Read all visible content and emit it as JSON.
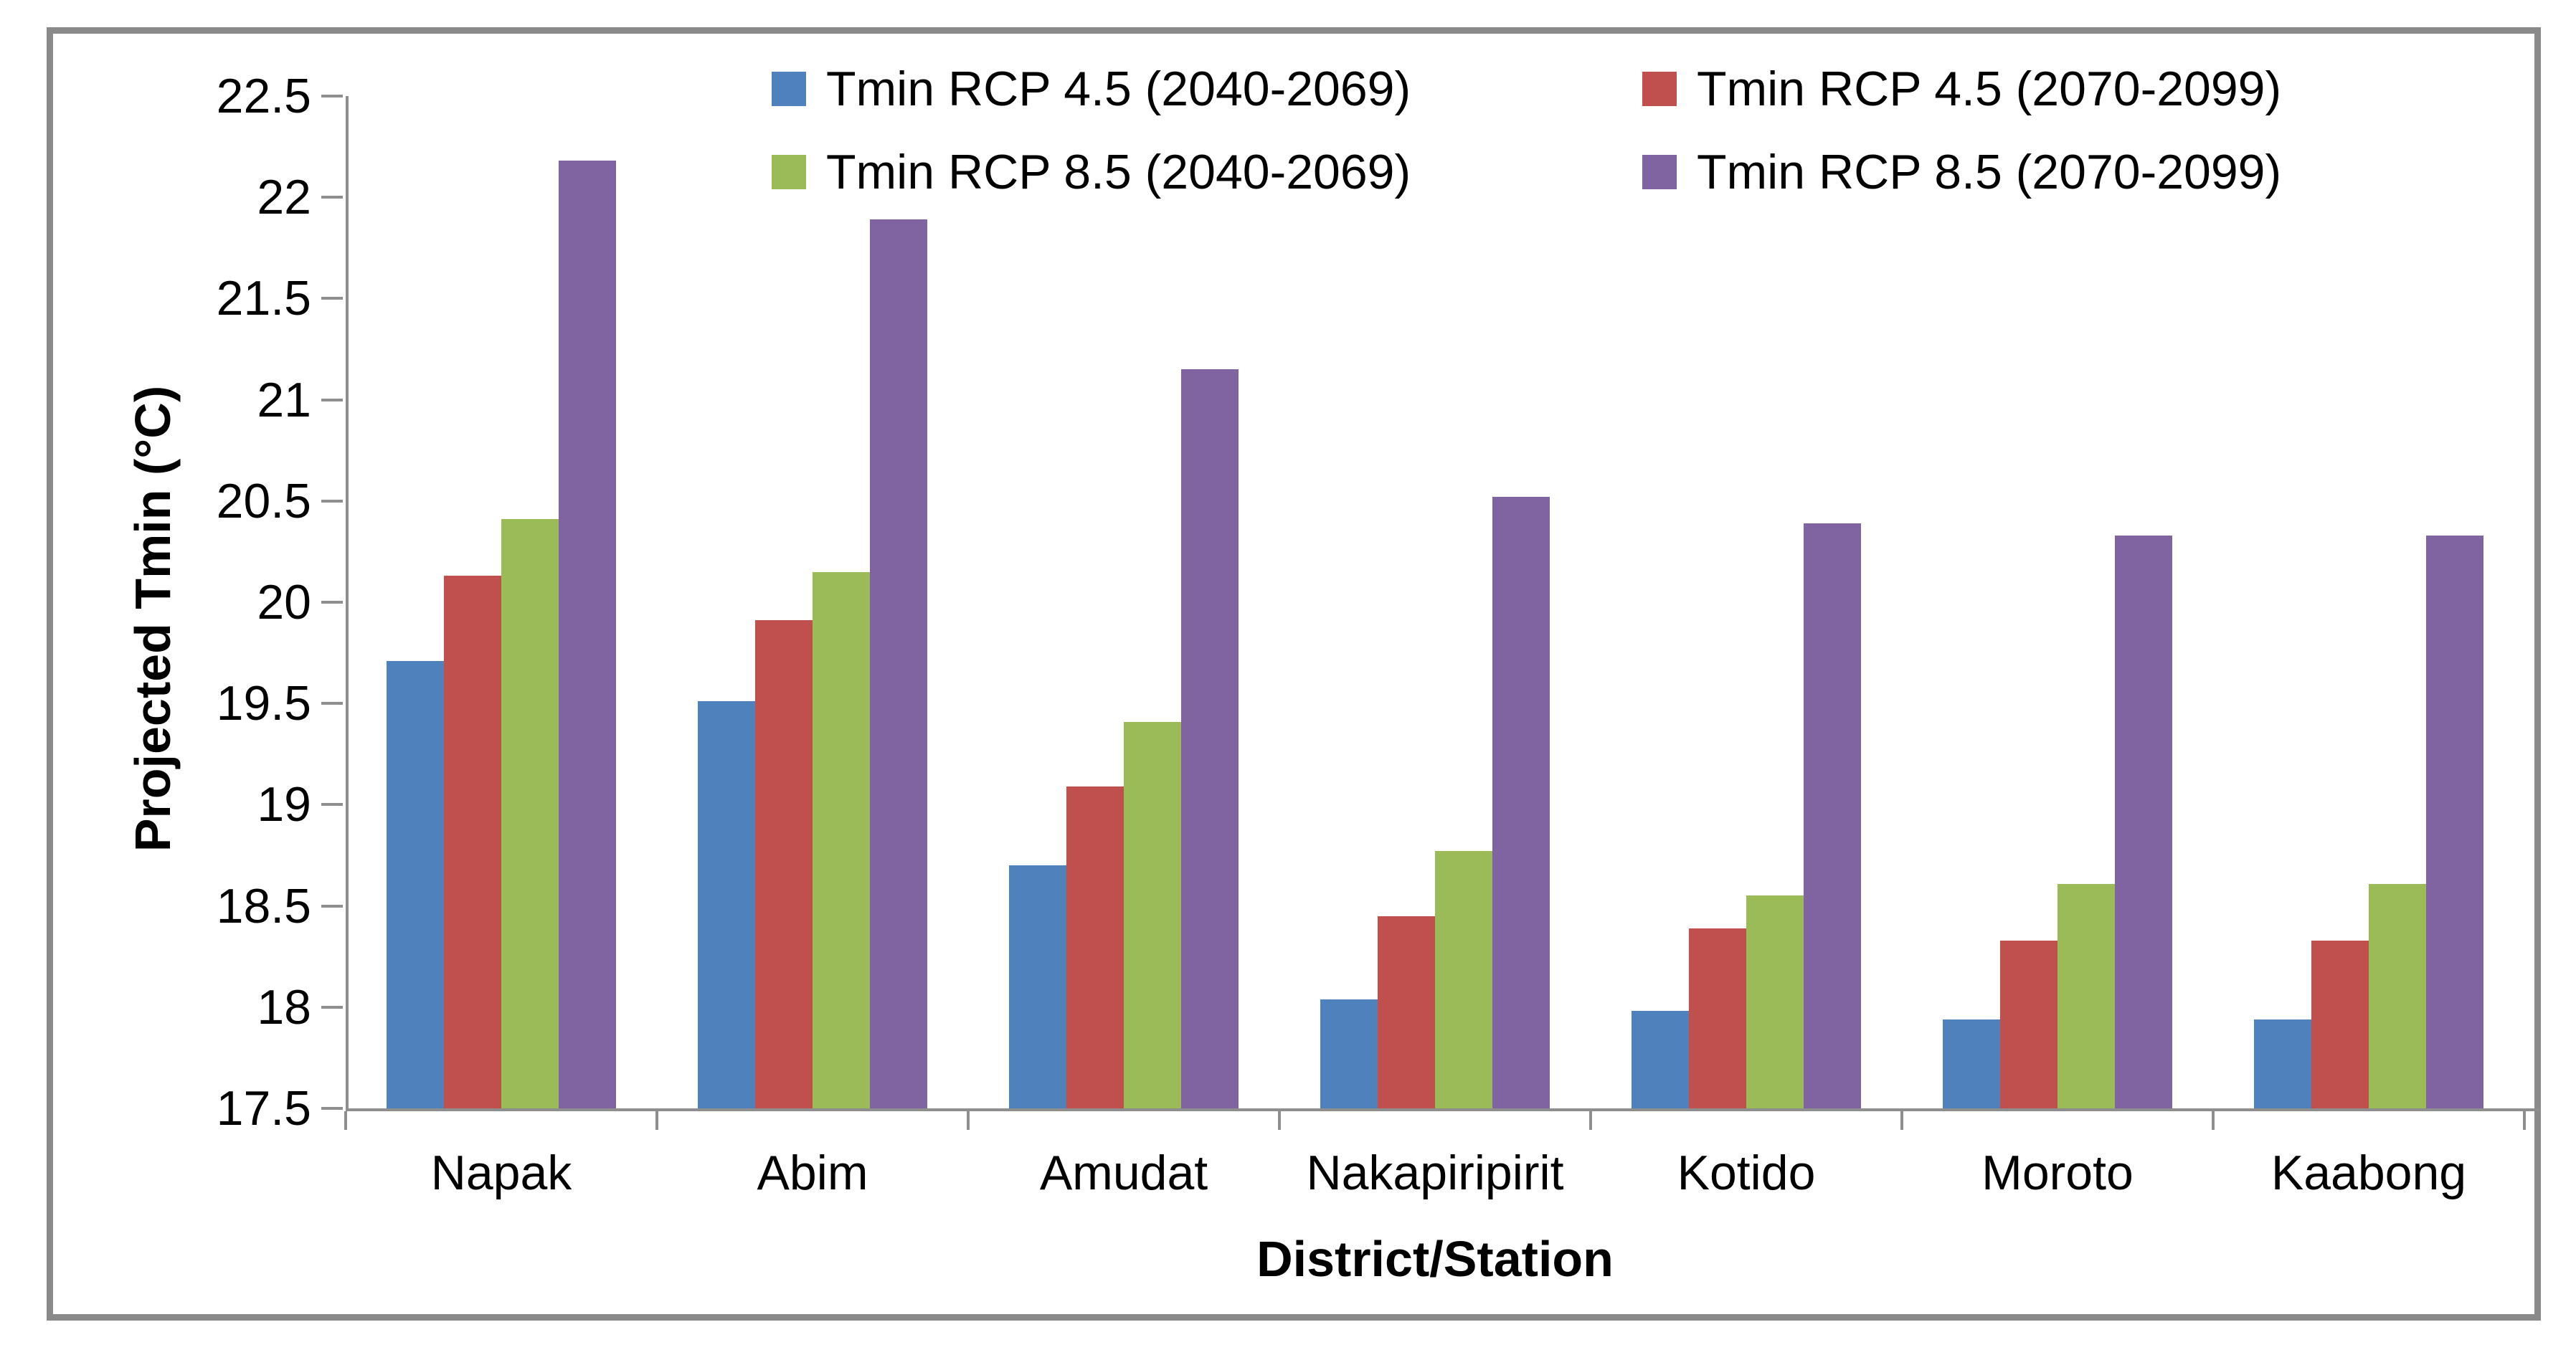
{
  "chart_data": {
    "type": "bar",
    "categories": [
      "Napak",
      "Abim",
      "Amudat",
      "Nakapiripirit",
      "Kotido",
      "Moroto",
      "Kaabong"
    ],
    "series": [
      {
        "name": "Tmin RCP 4.5 (2040-2069)",
        "color": "#4F81BD",
        "values": [
          19.71,
          19.51,
          18.7,
          18.04,
          17.98,
          17.94,
          17.94
        ]
      },
      {
        "name": "Tmin RCP 4.5 (2070-2099)",
        "color": "#C0504D",
        "values": [
          20.13,
          19.91,
          19.09,
          18.45,
          18.39,
          18.33,
          18.33
        ]
      },
      {
        "name": "Tmin RCP 8.5 (2040-2069)",
        "color": "#9BBB59",
        "values": [
          20.41,
          20.15,
          19.41,
          18.77,
          18.55,
          18.61,
          18.61
        ]
      },
      {
        "name": "Tmin RCP 8.5 (2070-2099)",
        "color": "#8064A2",
        "values": [
          22.18,
          21.89,
          21.15,
          20.52,
          20.39,
          20.33,
          20.33
        ]
      }
    ],
    "title": "",
    "xlabel": "District/Station",
    "ylabel": "Projected Tmin (°C)",
    "ylim": [
      17.5,
      22.5
    ],
    "ytick_step": 0.5,
    "ytick_labels": [
      "17.5",
      "18",
      "18.5",
      "19",
      "19.5",
      "20",
      "20.5",
      "21",
      "21.5",
      "22",
      "22.5"
    ],
    "grid": false,
    "legend_position": "top-inside-two-columns",
    "legend_order": [
      [
        "Tmin RCP 4.5 (2040-2069)",
        "Tmin RCP 4.5 (2070-2099)"
      ],
      [
        "Tmin RCP 8.5 (2040-2069)",
        "Tmin RCP 8.5 (2070-2099)"
      ]
    ],
    "colors": {
      "axis": "#8E8E8E",
      "frame": "#8A8A8A",
      "text": "#000000",
      "background": "#FFFFFF"
    }
  }
}
